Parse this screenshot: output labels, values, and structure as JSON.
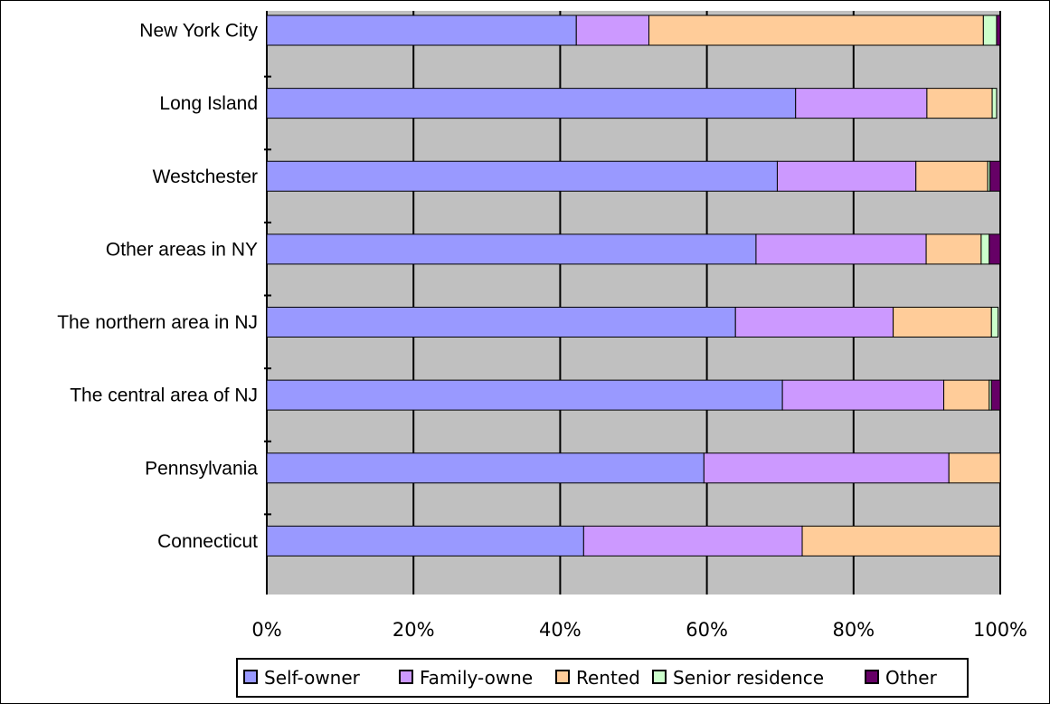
{
  "chart_data": {
    "type": "bar",
    "orientation": "horizontal",
    "stacked": "percent",
    "categories": [
      "New York City",
      "Long Island",
      "Westchester",
      "Other areas in NY",
      "The northern area in NJ",
      "The central area of NJ",
      "Pennsylvania",
      "Connecticut"
    ],
    "series": [
      {
        "name": "Self-owner",
        "color": "#9999ff",
        "values": [
          42.2,
          72.1,
          69.6,
          66.7,
          63.9,
          70.3,
          59.6,
          43.2
        ]
      },
      {
        "name": "Family-owne",
        "color": "#cc99ff",
        "values": [
          9.9,
          17.9,
          18.9,
          23.2,
          21.5,
          22.0,
          33.4,
          29.8
        ]
      },
      {
        "name": "Rented",
        "color": "#ffcc99",
        "values": [
          45.6,
          8.9,
          9.8,
          7.5,
          13.4,
          6.2,
          7.0,
          27.0
        ]
      },
      {
        "name": "Senior residence",
        "color": "#ccffcc",
        "values": [
          1.8,
          0.6,
          0.3,
          1.1,
          0.9,
          0.3,
          0.0,
          0.0
        ]
      },
      {
        "name": "Other",
        "color": "#660066",
        "values": [
          0.5,
          0.0,
          1.4,
          1.5,
          0.0,
          1.2,
          0.0,
          0.0
        ]
      }
    ],
    "x_ticks": [
      "0%",
      "20%",
      "40%",
      "60%",
      "80%",
      "100%"
    ],
    "xlim": [
      0,
      100
    ],
    "grid": true,
    "plot_background": "#c0c0c0",
    "legend_position": "bottom"
  }
}
